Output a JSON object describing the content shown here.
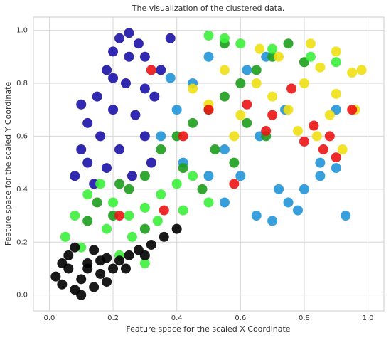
{
  "chart_data": {
    "type": "scatter",
    "title": "The visualization of the clustered data.",
    "x_label": "Feature space for the scaled X Coordinate",
    "y_label": "Feature space for the scaled Y Coordinate",
    "xlim": [
      -0.05,
      1.05
    ],
    "ylim": [
      -0.06,
      1.05
    ],
    "xticks": [
      {
        "value": 0,
        "label": "0.0"
      },
      0.2,
      0.4,
      0.6,
      0.8,
      {
        "value": 1,
        "label": "1.0"
      }
    ],
    "yticks": [
      {
        "value": 0,
        "label": "0.0"
      },
      0.2,
      0.4,
      0.6,
      0.8,
      {
        "value": 1,
        "label": "1.0"
      }
    ],
    "grid": true,
    "series": [
      {
        "color": "#1c12a8",
        "x": [
          0.08,
          0.1,
          0.12,
          0.15,
          0.18,
          0.2,
          0.22,
          0.25,
          0.28,
          0.3,
          0.12,
          0.16,
          0.2,
          0.24,
          0.27,
          0.3,
          0.33,
          0.14,
          0.18,
          0.22,
          0.26,
          0.1,
          0.2,
          0.35,
          0.38,
          0.32,
          0.25,
          0.3
        ],
        "values": [
          0.45,
          0.55,
          0.65,
          0.75,
          0.85,
          0.92,
          0.97,
          0.99,
          0.95,
          0.9,
          0.5,
          0.6,
          0.7,
          0.8,
          0.68,
          0.6,
          0.75,
          0.42,
          0.48,
          0.55,
          0.45,
          0.72,
          0.82,
          0.85,
          0.97,
          0.5,
          0.9,
          0.78
        ]
      },
      {
        "color": "#2196d8",
        "x": [
          0.35,
          0.4,
          0.45,
          0.5,
          0.55,
          0.6,
          0.65,
          0.7,
          0.75,
          0.8,
          0.85,
          0.9,
          0.93,
          0.62,
          0.68,
          0.72,
          0.78,
          0.85,
          0.9,
          0.5,
          0.55,
          0.42,
          0.38,
          0.66,
          0.74
        ],
        "values": [
          0.6,
          0.7,
          0.8,
          0.9,
          0.55,
          0.45,
          0.3,
          0.28,
          0.35,
          0.4,
          0.45,
          0.48,
          0.3,
          0.85,
          0.9,
          0.4,
          0.32,
          0.5,
          0.7,
          0.45,
          0.35,
          0.5,
          0.82,
          0.6,
          0.7
        ]
      },
      {
        "color": "#1c9e1c",
        "x": [
          0.15,
          0.2,
          0.25,
          0.3,
          0.35,
          0.4,
          0.45,
          0.5,
          0.55,
          0.6,
          0.65,
          0.7,
          0.75,
          0.8,
          0.42,
          0.48,
          0.52,
          0.58,
          0.62,
          0.68,
          0.3,
          0.22,
          0.12,
          0.55
        ],
        "values": [
          0.35,
          0.3,
          0.4,
          0.45,
          0.55,
          0.6,
          0.65,
          0.7,
          0.75,
          0.8,
          0.85,
          0.9,
          0.95,
          0.88,
          0.48,
          0.4,
          0.55,
          0.5,
          0.65,
          0.6,
          0.25,
          0.42,
          0.28,
          0.95
        ]
      },
      {
        "color": "#3cf03c",
        "x": [
          0.05,
          0.08,
          0.12,
          0.16,
          0.2,
          0.25,
          0.3,
          0.35,
          0.4,
          0.45,
          0.5,
          0.1,
          0.18,
          0.26,
          0.34,
          0.42,
          0.5,
          0.55,
          0.6,
          0.7,
          0.82,
          0.9,
          0.3,
          0.22
        ],
        "values": [
          0.22,
          0.3,
          0.38,
          0.42,
          0.35,
          0.3,
          0.33,
          0.38,
          0.42,
          0.45,
          0.35,
          0.18,
          0.25,
          0.22,
          0.28,
          0.32,
          0.98,
          0.97,
          0.95,
          0.93,
          0.9,
          0.88,
          0.12,
          0.15
        ]
      },
      {
        "color": "#f0e014",
        "x": [
          0.45,
          0.5,
          0.55,
          0.6,
          0.65,
          0.7,
          0.75,
          0.8,
          0.85,
          0.9,
          0.95,
          0.72,
          0.78,
          0.84,
          0.88,
          0.92,
          0.96,
          0.58,
          0.66,
          0.82,
          0.9,
          0.98
        ],
        "values": [
          0.78,
          0.72,
          0.85,
          0.68,
          0.8,
          0.75,
          0.7,
          0.8,
          0.86,
          0.76,
          0.84,
          0.9,
          0.62,
          0.6,
          0.68,
          0.55,
          0.7,
          0.6,
          0.93,
          0.95,
          0.92,
          0.85
        ]
      },
      {
        "color": "#ec1414",
        "x": [
          0.32,
          0.42,
          0.5,
          0.62,
          0.68,
          0.7,
          0.76,
          0.8,
          0.83,
          0.86,
          0.88,
          0.9,
          0.95,
          0.36,
          0.22,
          0.58
        ],
        "values": [
          0.85,
          0.6,
          0.7,
          0.72,
          0.62,
          0.68,
          0.78,
          0.58,
          0.64,
          0.55,
          0.6,
          0.52,
          0.7,
          0.32,
          0.3,
          0.42
        ]
      },
      {
        "color": "#000000",
        "x": [
          0.02,
          0.04,
          0.06,
          0.08,
          0.1,
          0.12,
          0.14,
          0.16,
          0.18,
          0.2,
          0.22,
          0.25,
          0.28,
          0.32,
          0.36,
          0.4,
          0.06,
          0.1,
          0.14,
          0.18,
          0.08,
          0.12,
          0.04,
          0.16,
          0.24,
          0.3
        ],
        "values": [
          0.07,
          0.04,
          0.1,
          0.02,
          0.06,
          0.12,
          0.03,
          0.08,
          0.14,
          0.1,
          0.13,
          0.15,
          0.17,
          0.19,
          0.22,
          0.25,
          0.15,
          0.0,
          0.17,
          0.05,
          0.18,
          0.1,
          0.12,
          0.13,
          0.1,
          0.15
        ]
      }
    ]
  }
}
